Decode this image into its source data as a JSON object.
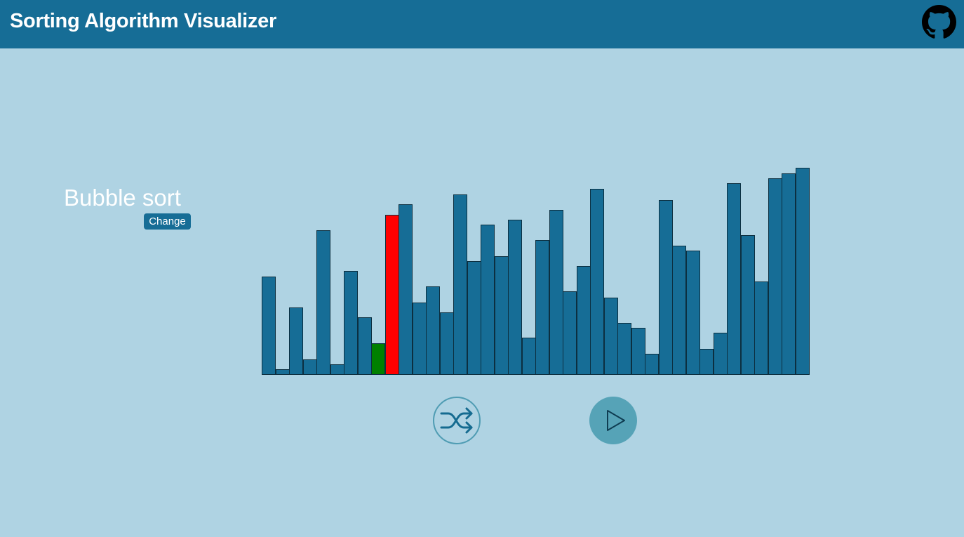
{
  "header": {
    "title": "Sorting Algorithm Visualizer",
    "github_icon": "github-icon"
  },
  "algorithm": {
    "name": "Bubble sort",
    "change_label": "Change"
  },
  "colors": {
    "header_bg": "#166d96",
    "page_bg": "#afd3e3",
    "bar_default": "#166d96",
    "bar_compare": "#ff0000",
    "bar_current": "#008000",
    "control_accent": "#4f9cb3"
  },
  "array": {
    "values": [
      138,
      8,
      95,
      22,
      203,
      15,
      146,
      81,
      44,
      225,
      240,
      102,
      124,
      88,
      254,
      160,
      211,
      167,
      218,
      52,
      189,
      232,
      117,
      153,
      262,
      109,
      73,
      66,
      30,
      246,
      182,
      175,
      37,
      59,
      269,
      196,
      131,
      276,
      283,
      291
    ],
    "max": 300,
    "states": [
      "default",
      "default",
      "default",
      "default",
      "default",
      "default",
      "default",
      "default",
      "current",
      "compare",
      "default",
      "default",
      "default",
      "default",
      "default",
      "default",
      "default",
      "default",
      "default",
      "default",
      "default",
      "default",
      "default",
      "default",
      "default",
      "default",
      "default",
      "default",
      "default",
      "default",
      "default",
      "default",
      "default",
      "default",
      "default",
      "default",
      "default",
      "default",
      "default",
      "default"
    ]
  },
  "controls": {
    "shuffle_icon": "shuffle-icon",
    "play_icon": "play-icon"
  }
}
